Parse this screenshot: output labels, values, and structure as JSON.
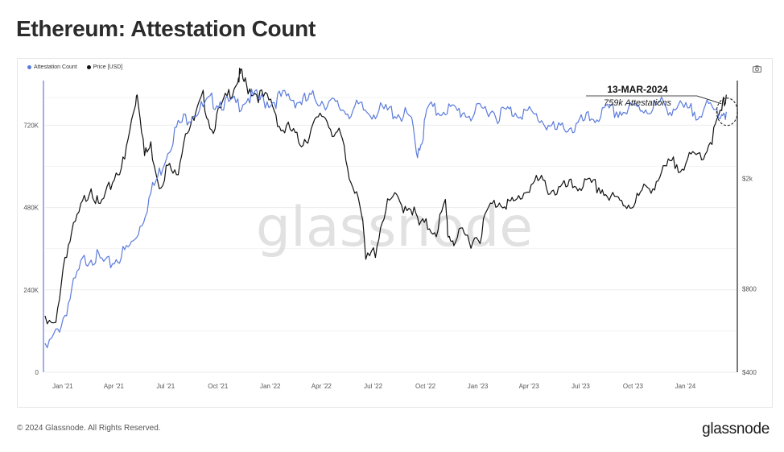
{
  "title": "Ethereum: Attestation Count",
  "legend": [
    {
      "label": "Attestation Count",
      "color": "#5b7bdc"
    },
    {
      "label": "Price [USD]",
      "color": "#111111"
    }
  ],
  "watermark": "glassnode",
  "footer": "© 2024 Glassnode. All Rights Reserved.",
  "brand": "glassnode",
  "camera_icon": "camera-icon",
  "colors": {
    "attestation": "#5b7bdc",
    "price": "#111111",
    "grid": "#ececec"
  },
  "chart_data": {
    "type": "line",
    "title": "Ethereum: Attestation Count",
    "x_ticks": [
      "Jan '21",
      "Apr '21",
      "Jul '21",
      "Oct '21",
      "Jan '22",
      "Apr '22",
      "Jul '22",
      "Oct '22",
      "Jan '23",
      "Apr '23",
      "Jul '23",
      "Oct '23",
      "Jan '24"
    ],
    "x_range": [
      "2020-12-01",
      "2024-03-31"
    ],
    "left_axis": {
      "ticks": [
        "0",
        "240K",
        "480K",
        "720K"
      ],
      "values": [
        0,
        240000,
        480000,
        720000
      ],
      "ylim": [
        0,
        850000
      ]
    },
    "right_axis": {
      "ticks": [
        "$400",
        "$800",
        "$2k"
      ],
      "values": [
        400,
        800,
        2000
      ],
      "scale": "log",
      "ylim": [
        400,
        4500
      ]
    },
    "annotation": {
      "date": "13-MAR-2024",
      "text": "759k Attestations"
    },
    "series": [
      {
        "name": "Attestation Count",
        "axis": "left",
        "x": [
          "2020-12-01",
          "2020-12-20",
          "2021-01-05",
          "2021-01-20",
          "2021-02-05",
          "2021-02-20",
          "2021-03-05",
          "2021-03-20",
          "2021-04-05",
          "2021-04-20",
          "2021-05-05",
          "2021-05-20",
          "2021-06-05",
          "2021-06-20",
          "2021-07-05",
          "2021-07-20",
          "2021-08-05",
          "2021-08-20",
          "2021-09-05",
          "2021-09-20",
          "2021-10-05",
          "2021-10-20",
          "2021-11-05",
          "2021-11-20",
          "2021-12-05",
          "2021-12-20",
          "2022-01-05",
          "2022-01-20",
          "2022-02-05",
          "2022-02-20",
          "2022-03-05",
          "2022-03-20",
          "2022-04-05",
          "2022-04-20",
          "2022-05-05",
          "2022-05-20",
          "2022-06-05",
          "2022-06-20",
          "2022-07-05",
          "2022-07-20",
          "2022-08-05",
          "2022-08-20",
          "2022-09-05",
          "2022-09-15",
          "2022-09-25",
          "2022-10-05",
          "2022-10-20",
          "2022-11-05",
          "2022-11-20",
          "2022-12-05",
          "2022-12-20",
          "2023-01-05",
          "2023-01-20",
          "2023-02-05",
          "2023-02-20",
          "2023-03-05",
          "2023-03-20",
          "2023-04-05",
          "2023-04-20",
          "2023-05-05",
          "2023-05-20",
          "2023-06-05",
          "2023-06-20",
          "2023-07-05",
          "2023-07-20",
          "2023-08-05",
          "2023-08-20",
          "2023-09-05",
          "2023-09-20",
          "2023-10-05",
          "2023-10-20",
          "2023-11-05",
          "2023-11-20",
          "2023-12-05",
          "2023-12-20",
          "2024-01-05",
          "2024-01-20",
          "2024-02-05",
          "2024-02-20",
          "2024-03-05",
          "2024-03-13"
        ],
        "values": [
          60000,
          110000,
          170000,
          250000,
          320000,
          340000,
          330000,
          310000,
          330000,
          350000,
          380000,
          440000,
          520000,
          580000,
          650000,
          710000,
          740000,
          760000,
          770000,
          790000,
          790000,
          780000,
          780000,
          800000,
          800000,
          790000,
          790000,
          800000,
          800000,
          790000,
          790000,
          800000,
          790000,
          780000,
          770000,
          760000,
          770000,
          760000,
          760000,
          760000,
          760000,
          750000,
          740000,
          640000,
          680000,
          770000,
          760000,
          770000,
          760000,
          760000,
          750000,
          760000,
          770000,
          750000,
          760000,
          760000,
          760000,
          750000,
          740000,
          720000,
          700000,
          720000,
          710000,
          730000,
          740000,
          750000,
          760000,
          760000,
          760000,
          770000,
          770000,
          770000,
          780000,
          770000,
          770000,
          760000,
          760000,
          770000,
          760000,
          760000,
          759000
        ]
      },
      {
        "name": "Price [USD]",
        "axis": "right",
        "x": [
          "2020-12-01",
          "2020-12-20",
          "2021-01-05",
          "2021-01-20",
          "2021-02-05",
          "2021-02-20",
          "2021-03-05",
          "2021-03-20",
          "2021-04-05",
          "2021-04-20",
          "2021-05-05",
          "2021-05-12",
          "2021-05-25",
          "2021-06-05",
          "2021-06-20",
          "2021-07-05",
          "2021-07-20",
          "2021-08-05",
          "2021-08-20",
          "2021-09-05",
          "2021-09-20",
          "2021-10-05",
          "2021-10-20",
          "2021-11-05",
          "2021-11-10",
          "2021-11-20",
          "2021-12-05",
          "2021-12-20",
          "2022-01-05",
          "2022-01-20",
          "2022-02-05",
          "2022-02-20",
          "2022-03-05",
          "2022-03-20",
          "2022-04-05",
          "2022-04-20",
          "2022-05-05",
          "2022-05-20",
          "2022-06-05",
          "2022-06-18",
          "2022-07-05",
          "2022-07-20",
          "2022-08-05",
          "2022-08-20",
          "2022-09-05",
          "2022-09-20",
          "2022-10-05",
          "2022-10-20",
          "2022-11-05",
          "2022-11-10",
          "2022-11-20",
          "2022-12-05",
          "2022-12-20",
          "2023-01-05",
          "2023-01-20",
          "2023-02-05",
          "2023-02-20",
          "2023-03-05",
          "2023-03-20",
          "2023-04-05",
          "2023-04-20",
          "2023-05-05",
          "2023-05-20",
          "2023-06-05",
          "2023-06-20",
          "2023-07-05",
          "2023-07-20",
          "2023-08-05",
          "2023-08-20",
          "2023-09-05",
          "2023-09-20",
          "2023-10-05",
          "2023-10-20",
          "2023-11-05",
          "2023-11-20",
          "2023-12-05",
          "2023-12-20",
          "2024-01-05",
          "2024-01-20",
          "2024-02-05",
          "2024-02-20",
          "2024-03-05",
          "2024-03-13"
        ],
        "values": [
          600,
          580,
          1050,
          1300,
          1600,
          1900,
          1550,
          1750,
          2100,
          2300,
          3400,
          4150,
          2400,
          2600,
          1900,
          2200,
          2000,
          3000,
          3200,
          3900,
          3000,
          3500,
          4000,
          4600,
          4700,
          4300,
          4100,
          3900,
          3700,
          3000,
          3000,
          2700,
          2800,
          3100,
          3400,
          3000,
          2800,
          2000,
          1800,
          1000,
          1100,
          1500,
          1700,
          1600,
          1600,
          1350,
          1350,
          1300,
          1600,
          1250,
          1200,
          1250,
          1200,
          1250,
          1550,
          1650,
          1650,
          1600,
          1750,
          1900,
          1950,
          1850,
          1800,
          1850,
          1880,
          1900,
          1880,
          1850,
          1700,
          1650,
          1620,
          1650,
          1800,
          1900,
          2050,
          2250,
          2250,
          2300,
          2400,
          2500,
          2900,
          3500,
          4000
        ]
      }
    ]
  }
}
